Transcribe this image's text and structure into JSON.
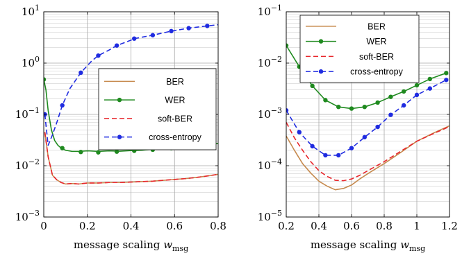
{
  "chart_data": [
    {
      "type": "line",
      "xlabel": "message scaling",
      "xlabel_symbol": "w",
      "xlabel_subscript": "msg",
      "yscale": "log",
      "xlim": [
        0,
        0.8
      ],
      "ylim": [
        0.001,
        10
      ],
      "xticks": [
        0,
        0.2,
        0.4,
        0.6,
        0.8
      ],
      "xtick_labels": [
        "0",
        "0.2",
        "0.4",
        "0.6",
        "0.8"
      ],
      "yticks": [
        0.001,
        0.01,
        0.1,
        1,
        10
      ],
      "ytick_exponents": [
        "−3",
        "−2",
        "−1",
        "0",
        "1"
      ],
      "grid": true,
      "legend_position": "middle-right",
      "series": [
        {
          "name": "BER",
          "color": "#C68A4E",
          "style": "solid",
          "marker": "none",
          "x": [
            0.005,
            0.02,
            0.04,
            0.06,
            0.08,
            0.1,
            0.13,
            0.16,
            0.2,
            0.25,
            0.3,
            0.35,
            0.4,
            0.45,
            0.5,
            0.55,
            0.6,
            0.65,
            0.7,
            0.75,
            0.8
          ],
          "y": [
            0.045,
            0.015,
            0.0065,
            0.0053,
            0.0047,
            0.0044,
            0.0045,
            0.0044,
            0.0046,
            0.0046,
            0.0047,
            0.0047,
            0.0048,
            0.0049,
            0.005,
            0.0052,
            0.0054,
            0.0056,
            0.0059,
            0.0063,
            0.0068
          ]
        },
        {
          "name": "WER",
          "color": "#1F8A1F",
          "style": "solid",
          "marker": "circle",
          "x": [
            0.0,
            0.01,
            0.02,
            0.035,
            0.05,
            0.065,
            0.08,
            0.1,
            0.13,
            0.16,
            0.2,
            0.25,
            0.3,
            0.35,
            0.4,
            0.45,
            0.5,
            0.55,
            0.6,
            0.65,
            0.7,
            0.75,
            0.8
          ],
          "y": [
            0.48,
            0.3,
            0.12,
            0.05,
            0.031,
            0.025,
            0.022,
            0.02,
            0.019,
            0.019,
            0.0195,
            0.019,
            0.0195,
            0.0192,
            0.0197,
            0.02,
            0.021,
            0.021,
            0.022,
            0.0235,
            0.024,
            0.026,
            0.027
          ],
          "marker_x": [
            0.0,
            0.085,
            0.17,
            0.25,
            0.335,
            0.415,
            0.5,
            0.585,
            0.665,
            0.75
          ],
          "marker_y": [
            0.48,
            0.022,
            0.0185,
            0.0182,
            0.0188,
            0.0195,
            0.0205,
            0.022,
            0.0235,
            0.026
          ]
        },
        {
          "name": "soft-BER",
          "color": "#E8262B",
          "style": "dashed",
          "marker": "none",
          "x": [
            0.005,
            0.02,
            0.04,
            0.06,
            0.08,
            0.1,
            0.13,
            0.16,
            0.2,
            0.25,
            0.3,
            0.35,
            0.4,
            0.45,
            0.5,
            0.55,
            0.6,
            0.65,
            0.7,
            0.75,
            0.8
          ],
          "y": [
            0.045,
            0.015,
            0.0065,
            0.0053,
            0.0047,
            0.0044,
            0.0045,
            0.0044,
            0.0046,
            0.0046,
            0.0047,
            0.0047,
            0.0048,
            0.0049,
            0.005,
            0.0052,
            0.0054,
            0.0056,
            0.0059,
            0.0063,
            0.0068
          ]
        },
        {
          "name": "cross-entropy",
          "color": "#1F2BE0",
          "style": "dashed",
          "marker": "circle",
          "x": [
            0.005,
            0.02,
            0.04,
            0.06,
            0.085,
            0.12,
            0.17,
            0.22,
            0.25,
            0.3,
            0.335,
            0.4,
            0.415,
            0.5,
            0.585,
            0.665,
            0.7,
            0.75,
            0.8
          ],
          "y": [
            0.1,
            0.025,
            0.04,
            0.07,
            0.15,
            0.32,
            0.65,
            1.1,
            1.4,
            1.8,
            2.2,
            2.8,
            3.0,
            3.5,
            4.2,
            4.8,
            5.0,
            5.3,
            5.6
          ],
          "marker_x": [
            0.005,
            0.085,
            0.17,
            0.25,
            0.335,
            0.415,
            0.5,
            0.585,
            0.665,
            0.75
          ],
          "marker_y": [
            0.1,
            0.15,
            0.65,
            1.4,
            2.2,
            3.0,
            3.5,
            4.2,
            4.8,
            5.3
          ]
        }
      ]
    },
    {
      "type": "line",
      "xlabel": "message scaling",
      "xlabel_symbol": "w",
      "xlabel_subscript": "msg",
      "yscale": "log",
      "xlim": [
        0.2,
        1.2
      ],
      "ylim": [
        1e-05,
        0.1
      ],
      "xticks": [
        0.2,
        0.4,
        0.6,
        0.8,
        1.0,
        1.2
      ],
      "xtick_labels": [
        "0.2",
        "0.4",
        "0.6",
        "0.8",
        "1",
        "1.2"
      ],
      "yticks": [
        1e-05,
        0.0001,
        0.001,
        0.01,
        0.1
      ],
      "ytick_exponents": [
        "−5",
        "−4",
        "−3",
        "−2",
        "−1"
      ],
      "grid": true,
      "legend_position": "top-left",
      "series": [
        {
          "name": "BER",
          "color": "#C68A4E",
          "style": "solid",
          "marker": "none",
          "x": [
            0.2,
            0.25,
            0.3,
            0.35,
            0.4,
            0.45,
            0.5,
            0.55,
            0.6,
            0.65,
            0.7,
            0.8,
            0.9,
            1.0,
            1.1,
            1.2
          ],
          "y": [
            0.00038,
            0.0002,
            0.00011,
            7.2e-05,
            5e-05,
            4e-05,
            3.4e-05,
            3.6e-05,
            4.2e-05,
            5.5e-05,
            7e-05,
            0.00011,
            0.00018,
            0.0003,
            0.00043,
            0.0006
          ]
        },
        {
          "name": "WER",
          "color": "#1F8A1F",
          "style": "solid",
          "marker": "circle",
          "x": [
            0.2,
            0.28,
            0.36,
            0.44,
            0.52,
            0.6,
            0.68,
            0.76,
            0.84,
            0.92,
            1.0,
            1.08,
            1.18
          ],
          "y": [
            0.022,
            0.0085,
            0.0036,
            0.0019,
            0.0014,
            0.0013,
            0.0014,
            0.0017,
            0.0022,
            0.0028,
            0.0037,
            0.0049,
            0.0064
          ]
        },
        {
          "name": "soft-BER",
          "color": "#E8262B",
          "style": "dashed",
          "marker": "none",
          "x": [
            0.2,
            0.25,
            0.3,
            0.35,
            0.4,
            0.45,
            0.5,
            0.55,
            0.6,
            0.65,
            0.7,
            0.8,
            0.9,
            1.0,
            1.1,
            1.2
          ],
          "y": [
            0.0007,
            0.00035,
            0.0002,
            0.00012,
            8e-05,
            6.2e-05,
            5.2e-05,
            5.1e-05,
            5.5e-05,
            6.5e-05,
            8e-05,
            0.00012,
            0.00019,
            0.0003,
            0.00042,
            0.00058
          ]
        },
        {
          "name": "cross-entropy",
          "color": "#1F2BE0",
          "style": "dashed",
          "marker": "circle",
          "x": [
            0.2,
            0.28,
            0.36,
            0.44,
            0.52,
            0.6,
            0.68,
            0.76,
            0.84,
            0.92,
            1.0,
            1.08,
            1.18
          ],
          "y": [
            0.0012,
            0.00045,
            0.00024,
            0.00016,
            0.00016,
            0.00022,
            0.00036,
            0.00057,
            0.00098,
            0.0015,
            0.0024,
            0.0032,
            0.0047
          ]
        }
      ]
    }
  ]
}
